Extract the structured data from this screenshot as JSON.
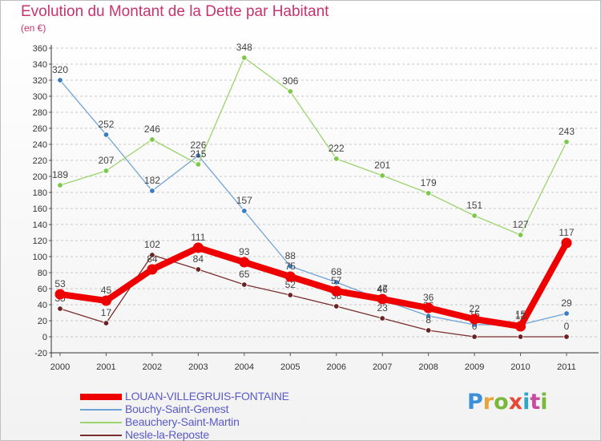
{
  "header": {
    "title": "Evolution du Montant de la Dette par Habitant",
    "unit": "(en €)"
  },
  "logo": {
    "text": "Proxiti",
    "colors": [
      "#3a8fd9",
      "#e8a33a",
      "#7ab83c",
      "#e6493a",
      "#2fa7c9",
      "#c84b9f",
      "#7ab83c"
    ]
  },
  "chart_data": {
    "type": "line",
    "x": [
      "2000",
      "2001",
      "2002",
      "2003",
      "2004",
      "2005",
      "2006",
      "2007",
      "2008",
      "2009",
      "2010",
      "2011"
    ],
    "ylim": [
      -20,
      360
    ],
    "yticks": [
      -20,
      0,
      20,
      40,
      60,
      80,
      100,
      120,
      140,
      160,
      180,
      200,
      220,
      240,
      260,
      280,
      300,
      320,
      340,
      360
    ],
    "grid": "horizontal dashed",
    "legend_position": "bottom-left",
    "series": [
      {
        "name": "Bouchy-Saint-Genest",
        "color": "#6fa3d6",
        "marker_color": "#3a7cc2",
        "values": [
          320,
          252,
          182,
          226,
          157,
          88,
          68,
          46,
          26,
          15,
          15,
          29
        ],
        "labels": [
          "320",
          "252",
          "182",
          "226",
          "157",
          "88",
          "68",
          "46",
          "26",
          "15",
          "15",
          "29"
        ]
      },
      {
        "name": "Beauchery-Saint-Martin",
        "color": "#9bd36e",
        "marker_color": "#7dc84a",
        "values": [
          189,
          207,
          246,
          215,
          348,
          306,
          222,
          201,
          179,
          151,
          127,
          243
        ],
        "labels": [
          "189",
          "207",
          "246",
          "215",
          "348",
          "306",
          "222",
          "201",
          "179",
          "151",
          "127",
          "243"
        ]
      },
      {
        "name": "Nesle-la-Reposte",
        "color": "#7a2e2e",
        "marker_color": "#6b2222",
        "values": [
          35,
          17,
          102,
          84,
          65,
          52,
          38,
          23,
          8,
          0,
          0,
          0
        ],
        "labels": [
          "35",
          "17",
          "102",
          "84",
          "65",
          "52",
          "38",
          "23",
          "8",
          "0",
          "",
          "0"
        ]
      },
      {
        "name": "LOUAN-VILLEGRUIS-FONTAINE",
        "color": "#ee0000",
        "marker_color": "#ee0000",
        "values": [
          53,
          45,
          84,
          111,
          93,
          75,
          57,
          47,
          36,
          22,
          13,
          117
        ],
        "labels": [
          "53",
          "45",
          "84",
          "111",
          "93",
          "75",
          "57",
          "47",
          "36",
          "22",
          "13",
          "117"
        ]
      }
    ],
    "legend_order": [
      "LOUAN-VILLEGRUIS-FONTAINE",
      "Bouchy-Saint-Genest",
      "Beauchery-Saint-Martin",
      "Nesle-la-Reposte"
    ]
  }
}
